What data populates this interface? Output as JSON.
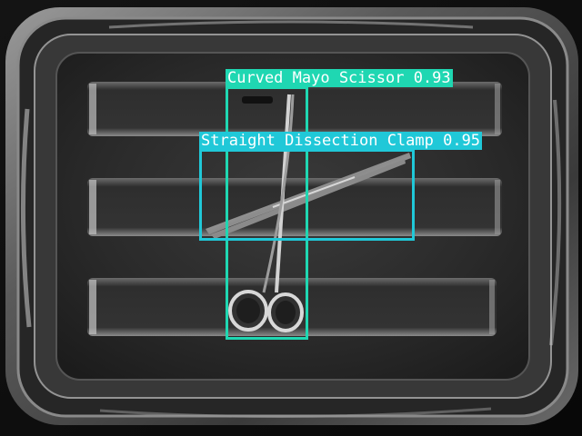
{
  "detections": [
    {
      "label": "Curved Mayo Scissor 0.93",
      "class": "Curved Mayo Scissor",
      "confidence": 0.93,
      "color": "#1fd7b2"
    },
    {
      "label": "Straight Dissection Clamp 0.95",
      "class": "Straight Dissection Clamp",
      "confidence": 0.95,
      "color": "#20c8d8"
    }
  ],
  "colors": {
    "background": "#000000",
    "tray": "#4a4a4a",
    "tray_inner": "#2a2a2a",
    "instrument": "#b8b8b8"
  }
}
